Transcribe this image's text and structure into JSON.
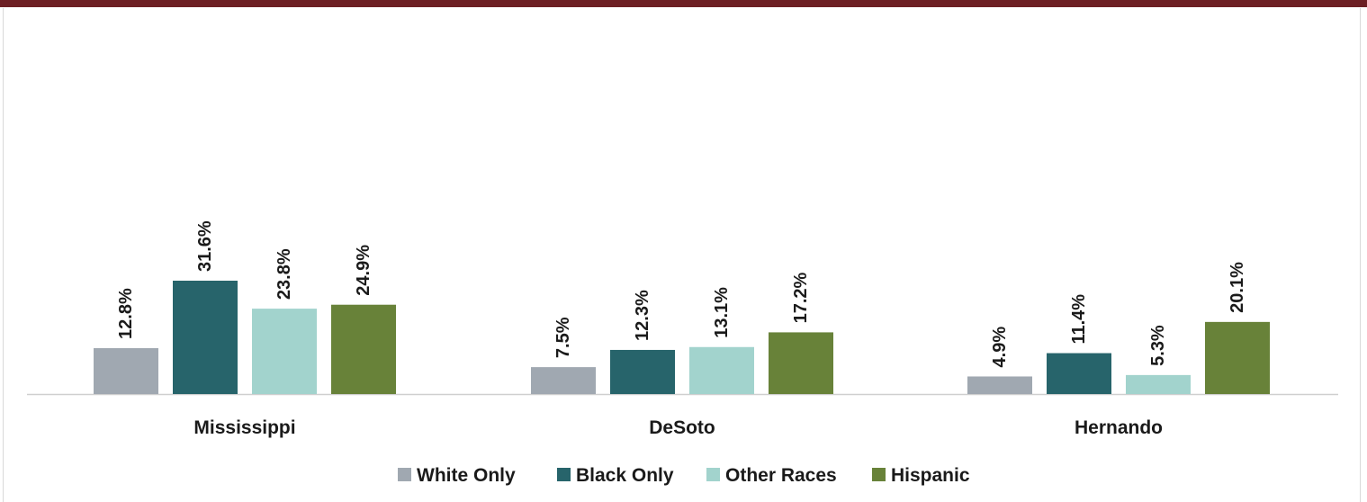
{
  "colors": {
    "top_bar": "#6d1f24",
    "axis": "#cfcfcf",
    "series": [
      "#a0a8b1",
      "#27646b",
      "#a2d3cd",
      "#688239"
    ]
  },
  "chart_data": {
    "type": "bar",
    "title": "",
    "xlabel": "",
    "ylabel": "",
    "ylim": [
      0,
      50
    ],
    "grid": false,
    "legend_position": "bottom",
    "categories": [
      "Mississippi",
      "DeSoto",
      "Hernando"
    ],
    "series": [
      {
        "name": "White Only",
        "values": [
          12.8,
          7.5,
          4.9
        ],
        "labels": [
          "12.8%",
          "7.5%",
          "4.9%"
        ]
      },
      {
        "name": "Black Only",
        "values": [
          31.6,
          12.3,
          11.4
        ],
        "labels": [
          "31.6%",
          "12.3%",
          "11.4%"
        ]
      },
      {
        "name": "Other Races",
        "values": [
          23.8,
          13.1,
          5.3
        ],
        "labels": [
          "23.8%",
          "13.1%",
          "5.3%"
        ]
      },
      {
        "name": "Hispanic",
        "values": [
          24.9,
          17.2,
          20.1
        ],
        "labels": [
          "24.9%",
          "17.2%",
          "20.1%"
        ]
      }
    ]
  }
}
